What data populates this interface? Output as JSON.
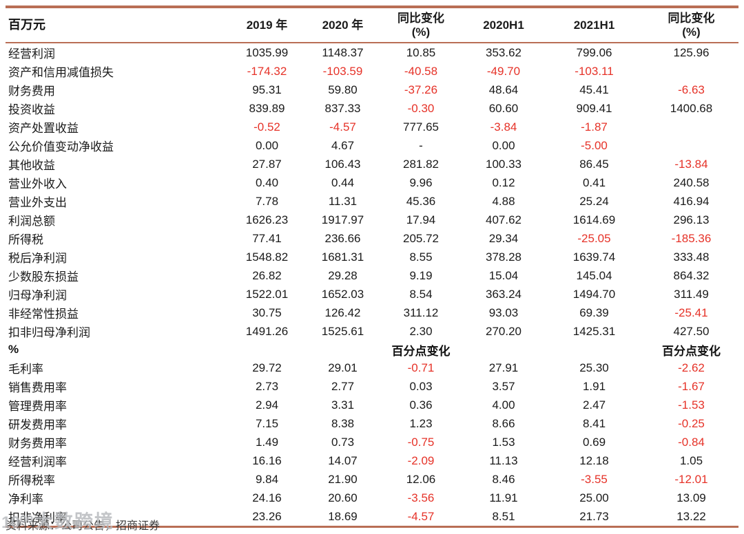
{
  "table": {
    "unit_label": "百万元",
    "columns": [
      "2019 年",
      "2020 年",
      "同比变化\n(%)",
      "2020H1",
      "2021H1",
      "同比变化\n(%)"
    ],
    "sections": [
      {
        "header": null,
        "rows": [
          {
            "label": "经营利润",
            "values": [
              "1035.99",
              "1148.37",
              "10.85",
              "353.62",
              "799.06",
              "125.96"
            ]
          },
          {
            "label": "资产和信用减值损失",
            "values": [
              "-174.32",
              "-103.59",
              "-40.58",
              "-49.70",
              "-103.11",
              ""
            ]
          },
          {
            "label": "财务费用",
            "values": [
              "95.31",
              "59.80",
              "-37.26",
              "48.64",
              "45.41",
              "-6.63"
            ]
          },
          {
            "label": "投资收益",
            "values": [
              "839.89",
              "837.33",
              "-0.30",
              "60.60",
              "909.41",
              "1400.68"
            ]
          },
          {
            "label": "资产处置收益",
            "values": [
              "-0.52",
              "-4.57",
              "777.65",
              "-3.84",
              "-1.87",
              ""
            ]
          },
          {
            "label": "公允价值变动净收益",
            "values": [
              "0.00",
              "4.67",
              "-",
              "0.00",
              "-5.00",
              ""
            ]
          },
          {
            "label": "其他收益",
            "values": [
              "27.87",
              "106.43",
              "281.82",
              "100.33",
              "86.45",
              "-13.84"
            ]
          },
          {
            "label": "营业外收入",
            "values": [
              "0.40",
              "0.44",
              "9.96",
              "0.12",
              "0.41",
              "240.58"
            ]
          },
          {
            "label": "营业外支出",
            "values": [
              "7.78",
              "11.31",
              "45.36",
              "4.88",
              "25.24",
              "416.94"
            ]
          },
          {
            "label": "利润总额",
            "values": [
              "1626.23",
              "1917.97",
              "17.94",
              "407.62",
              "1614.69",
              "296.13"
            ]
          },
          {
            "label": "所得税",
            "values": [
              "77.41",
              "236.66",
              "205.72",
              "29.34",
              "-25.05",
              "-185.36"
            ]
          },
          {
            "label": "税后净利润",
            "values": [
              "1548.82",
              "1681.31",
              "8.55",
              "378.28",
              "1639.74",
              "333.48"
            ]
          },
          {
            "label": "少数股东损益",
            "values": [
              "26.82",
              "29.28",
              "9.19",
              "15.04",
              "145.04",
              "864.32"
            ]
          },
          {
            "label": "归母净利润",
            "values": [
              "1522.01",
              "1652.03",
              "8.54",
              "363.24",
              "1494.70",
              "311.49"
            ]
          },
          {
            "label": "非经常性损益",
            "values": [
              "30.75",
              "126.42",
              "311.12",
              "93.03",
              "69.39",
              "-25.41"
            ]
          },
          {
            "label": "扣非归母净利润",
            "values": [
              "1491.26",
              "1525.61",
              "2.30",
              "270.20",
              "1425.31",
              "427.50"
            ]
          }
        ]
      },
      {
        "header": "%",
        "subheader_values": [
          "",
          "",
          "百分点变化",
          "",
          "",
          "百分点变化"
        ],
        "rows": [
          {
            "label": "毛利率",
            "values": [
              "29.72",
              "29.01",
              "-0.71",
              "27.91",
              "25.30",
              "-2.62"
            ]
          },
          {
            "label": "销售费用率",
            "values": [
              "2.73",
              "2.77",
              "0.03",
              "3.57",
              "1.91",
              "-1.67"
            ]
          },
          {
            "label": "管理费用率",
            "values": [
              "2.94",
              "3.31",
              "0.36",
              "4.00",
              "2.47",
              "-1.53"
            ]
          },
          {
            "label": "研发费用率",
            "values": [
              "7.15",
              "8.38",
              "1.23",
              "8.66",
              "8.41",
              "-0.25"
            ]
          },
          {
            "label": "财务费用率",
            "values": [
              "1.49",
              "0.73",
              "-0.75",
              "1.53",
              "0.69",
              "-0.84"
            ]
          },
          {
            "label": "经营利润率",
            "values": [
              "16.16",
              "14.07",
              "-2.09",
              "11.13",
              "12.18",
              "1.05"
            ]
          },
          {
            "label": "所得税率",
            "values": [
              "9.84",
              "21.90",
              "12.06",
              "8.46",
              "-3.55",
              "-12.01"
            ]
          },
          {
            "label": "净利率",
            "values": [
              "24.16",
              "20.60",
              "-3.56",
              "11.91",
              "25.00",
              "13.09"
            ]
          },
          {
            "label": "扣非净利率",
            "values": [
              "23.26",
              "18.69",
              "-4.57",
              "8.51",
              "21.73",
              "13.22"
            ]
          }
        ]
      }
    ]
  },
  "footer": {
    "source": "资料来源：公司公告，招商证券"
  },
  "watermark": {
    "logo": "10⁰⁰",
    "text": "大数跨境"
  },
  "colors": {
    "rule_line": "#b96e55",
    "negative_value": "#e63228",
    "text": "#1a1a1a"
  }
}
